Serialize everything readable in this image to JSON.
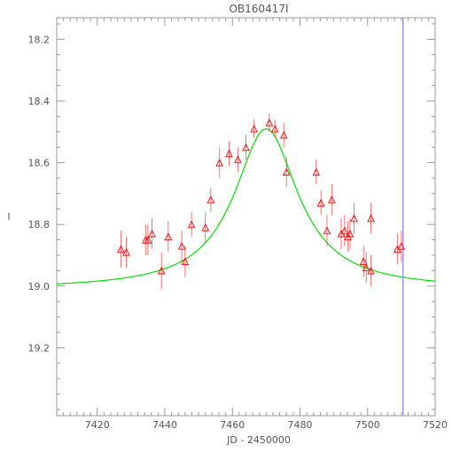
{
  "chart_data": {
    "type": "scatter",
    "title": "OB160417I",
    "xlabel": "JD - 2450000",
    "ylabel": "I",
    "xlim": [
      7408,
      7520
    ],
    "ylim": [
      19.42,
      18.13
    ],
    "x_ticks": [
      7420,
      7440,
      7460,
      7480,
      7500,
      7520
    ],
    "x_tick_labels": [
      "7420",
      "7440",
      "7460",
      "7480",
      "7500",
      "7520"
    ],
    "y_ticks": [
      18.2,
      18.4,
      18.6,
      18.8,
      19.0,
      19.2
    ],
    "y_tick_labels": [
      "18.2",
      "18.4",
      "18.6",
      "18.8",
      "19.0",
      "19.2"
    ],
    "grid": false,
    "points": [
      {
        "x": 7427.0,
        "y": 18.88,
        "err": 0.06
      },
      {
        "x": 7428.6,
        "y": 18.89,
        "err": 0.05
      },
      {
        "x": 7434.3,
        "y": 18.85,
        "err": 0.05
      },
      {
        "x": 7435.0,
        "y": 18.85,
        "err": 0.05
      },
      {
        "x": 7436.2,
        "y": 18.83,
        "err": 0.05
      },
      {
        "x": 7439.0,
        "y": 18.95,
        "err": 0.06
      },
      {
        "x": 7441.0,
        "y": 18.84,
        "err": 0.05
      },
      {
        "x": 7445.0,
        "y": 18.87,
        "err": 0.05
      },
      {
        "x": 7446.0,
        "y": 18.92,
        "err": 0.05
      },
      {
        "x": 7447.9,
        "y": 18.8,
        "err": 0.04
      },
      {
        "x": 7452.0,
        "y": 18.81,
        "err": 0.05
      },
      {
        "x": 7453.6,
        "y": 18.72,
        "err": 0.04
      },
      {
        "x": 7456.2,
        "y": 18.6,
        "err": 0.05
      },
      {
        "x": 7459.0,
        "y": 18.57,
        "err": 0.04
      },
      {
        "x": 7461.6,
        "y": 18.59,
        "err": 0.04
      },
      {
        "x": 7464.0,
        "y": 18.55,
        "err": 0.04
      },
      {
        "x": 7466.4,
        "y": 18.49,
        "err": 0.03
      },
      {
        "x": 7470.9,
        "y": 18.47,
        "err": 0.03
      },
      {
        "x": 7472.6,
        "y": 18.49,
        "err": 0.03
      },
      {
        "x": 7475.2,
        "y": 18.51,
        "err": 0.04
      },
      {
        "x": 7476.0,
        "y": 18.63,
        "err": 0.05
      },
      {
        "x": 7484.8,
        "y": 18.63,
        "err": 0.04
      },
      {
        "x": 7486.2,
        "y": 18.73,
        "err": 0.04
      },
      {
        "x": 7488.0,
        "y": 18.82,
        "err": 0.05
      },
      {
        "x": 7489.4,
        "y": 18.72,
        "err": 0.05
      },
      {
        "x": 7492.2,
        "y": 18.83,
        "err": 0.05
      },
      {
        "x": 7493.2,
        "y": 18.82,
        "err": 0.05
      },
      {
        "x": 7494.2,
        "y": 18.84,
        "err": 0.05
      },
      {
        "x": 7494.8,
        "y": 18.83,
        "err": 0.05
      },
      {
        "x": 7496.0,
        "y": 18.78,
        "err": 0.05
      },
      {
        "x": 7498.8,
        "y": 18.92,
        "err": 0.05
      },
      {
        "x": 7499.6,
        "y": 18.94,
        "err": 0.05
      },
      {
        "x": 7501.0,
        "y": 18.95,
        "err": 0.05
      },
      {
        "x": 7501.0,
        "y": 18.78,
        "err": 0.05
      },
      {
        "x": 7508.8,
        "y": 18.88,
        "err": 0.05
      },
      {
        "x": 7510.0,
        "y": 18.87,
        "err": 0.05
      }
    ],
    "model_curve": {
      "type": "lensing_model",
      "t0": 7470.0,
      "baseline": 19.01,
      "peak": 18.49,
      "width": 11.5,
      "color": "#00e000"
    },
    "marker_color": "#ff0000",
    "vline": {
      "x": 7510.5,
      "color": "#8080e0"
    }
  }
}
